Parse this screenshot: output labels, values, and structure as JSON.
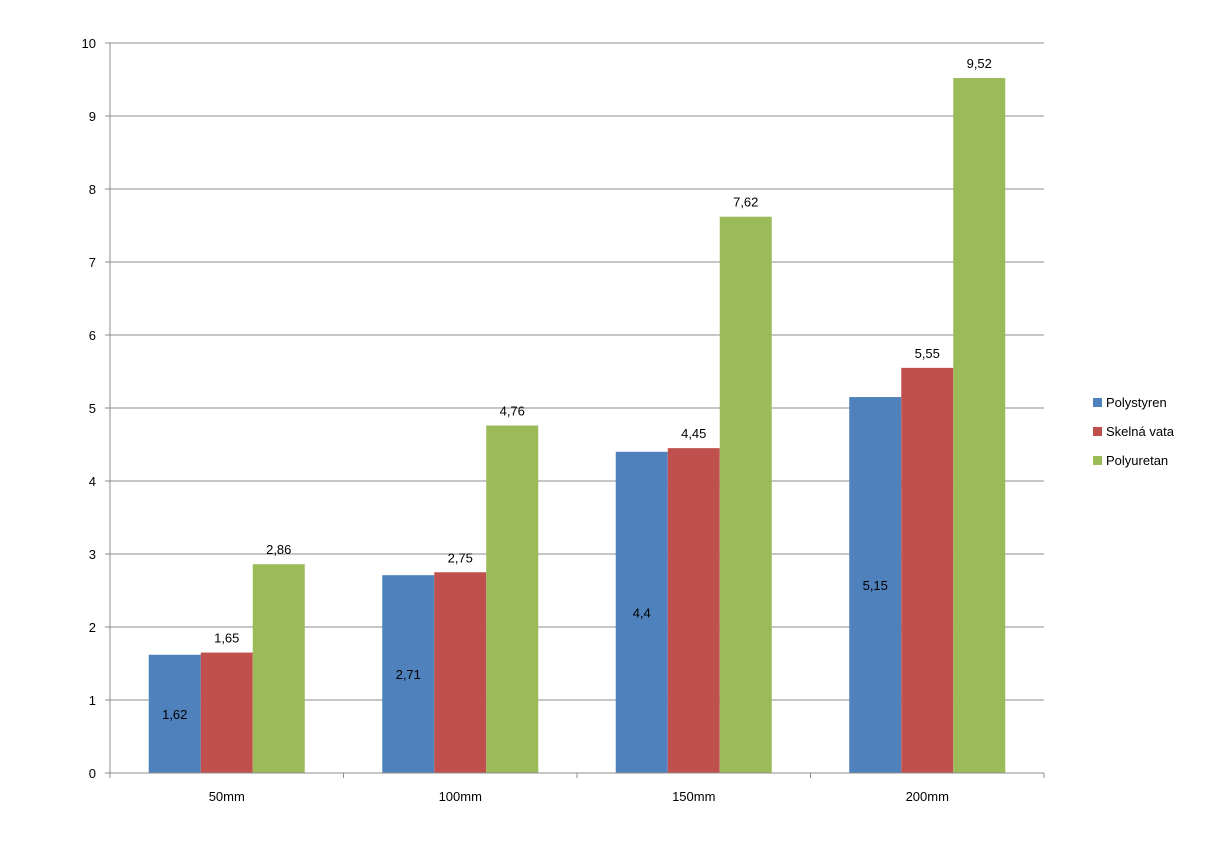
{
  "chart_data": {
    "type": "bar",
    "categories": [
      "50mm",
      "100mm",
      "150mm",
      "200mm"
    ],
    "series": [
      {
        "name": "Polystyren",
        "color": "#4f81bd",
        "values": [
          1.62,
          2.71,
          4.4,
          5.15
        ],
        "labels": [
          "1,62",
          "2,71",
          "4,4",
          "5,15"
        ],
        "label_position": "inside"
      },
      {
        "name": "Skelná vata",
        "color": "#c0504d",
        "values": [
          1.65,
          2.75,
          4.45,
          5.55
        ],
        "labels": [
          "1,65",
          "2,75",
          "4,45",
          "5,55"
        ],
        "label_position": "above"
      },
      {
        "name": "Polyuretan",
        "color": "#9bbb59",
        "values": [
          2.86,
          4.76,
          7.62,
          9.52
        ],
        "labels": [
          "2,86",
          "4,76",
          "7,62",
          "9,52"
        ],
        "label_position": "above"
      }
    ],
    "ylim": [
      0,
      10
    ],
    "yticks": [
      0,
      1,
      2,
      3,
      4,
      5,
      6,
      7,
      8,
      9,
      10
    ],
    "grid": true,
    "legend_position": "right",
    "title": "",
    "xlabel": "",
    "ylabel": ""
  }
}
